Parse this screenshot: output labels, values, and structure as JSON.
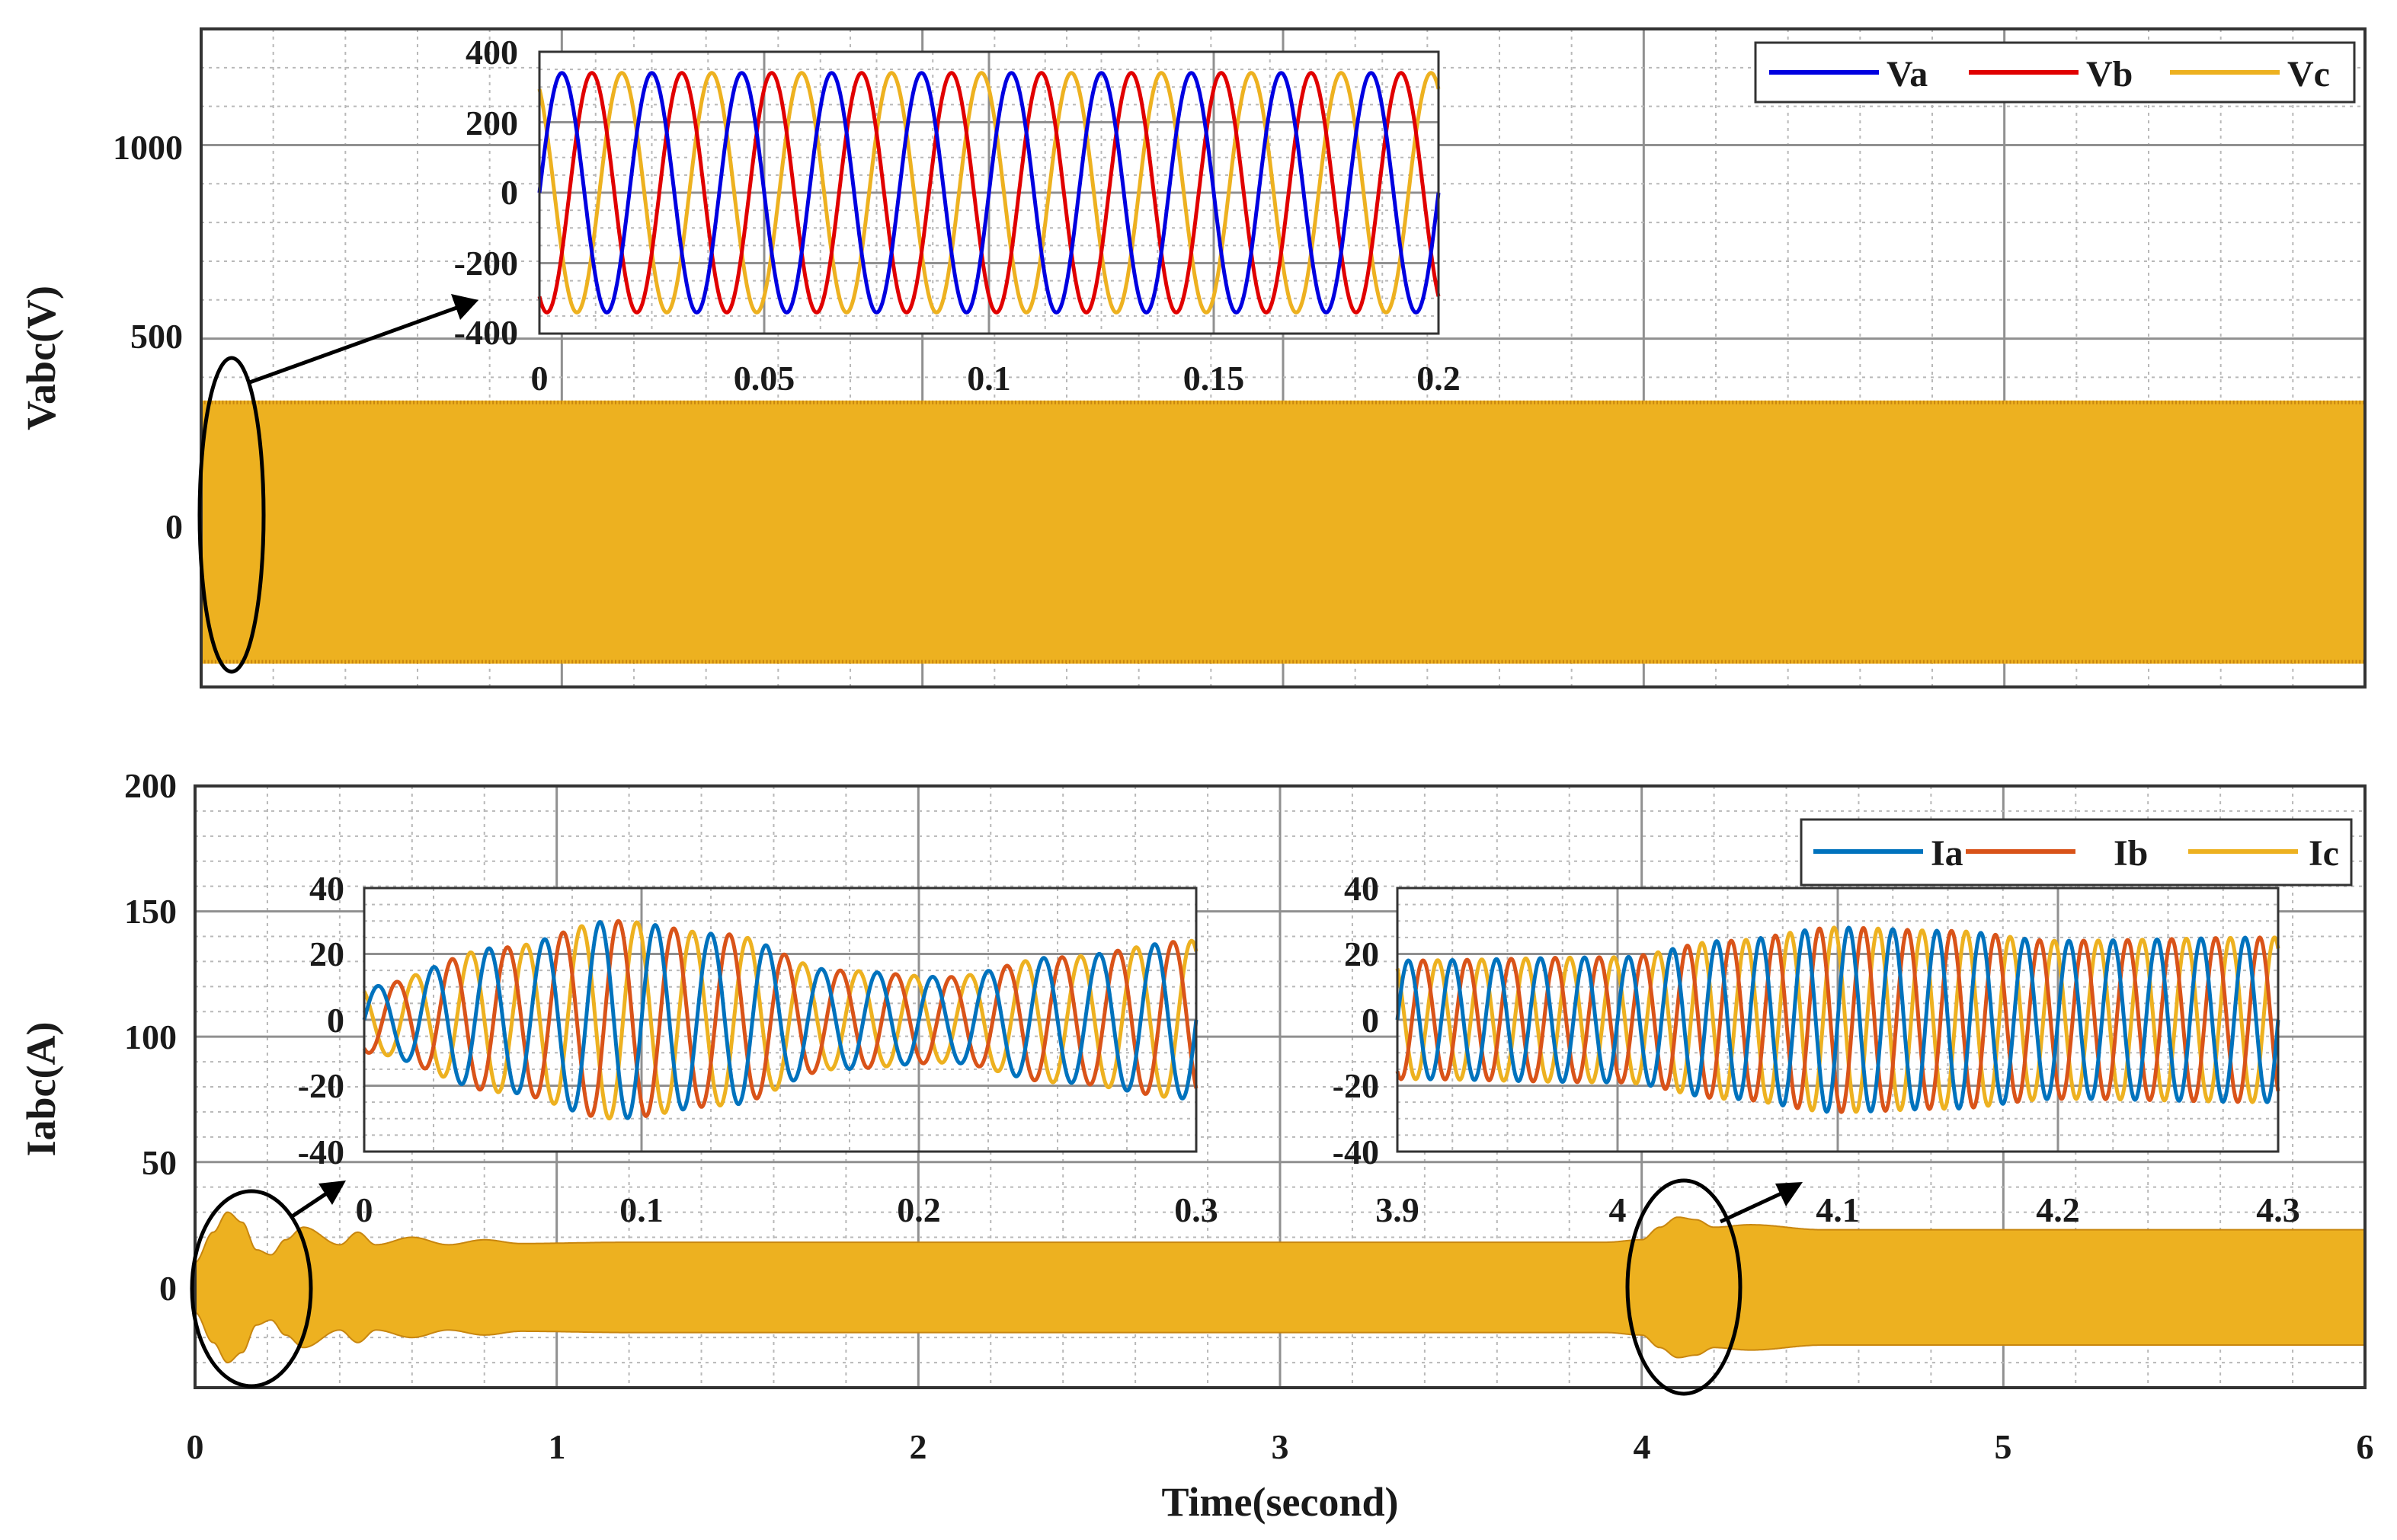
{
  "colors": {
    "Va": "#0000e0",
    "Vb": "#e00000",
    "Vc": "#edb120",
    "Ia": "#0072bd",
    "Ib": "#d95319",
    "Ic": "#edb120",
    "grid_major": "#909090",
    "grid_minor": "#b8b8b8",
    "axis": "#333333"
  },
  "chart_data": [
    {
      "id": "voltage",
      "type": "line",
      "ylabel": "Vabc(V)",
      "xlim": [
        0,
        6
      ],
      "ylim": [
        -400,
        1300
      ],
      "yticks": [
        0,
        500,
        1000
      ],
      "xticks": [
        0,
        1,
        2,
        3,
        4,
        5,
        6
      ],
      "grid": true,
      "frequency_hz": 50,
      "series": [
        {
          "name": "Va",
          "amplitude": 340,
          "phase_deg": 0
        },
        {
          "name": "Vb",
          "amplitude": 340,
          "phase_deg": -120
        },
        {
          "name": "Vc",
          "amplitude": 340,
          "phase_deg": 120
        }
      ],
      "legend": {
        "entries": [
          "Va",
          "Vb",
          "Vc"
        ],
        "position": "top-right"
      },
      "inset": {
        "xlim": [
          0,
          0.2
        ],
        "ylim": [
          -400,
          400
        ],
        "xticks": [
          0,
          0.05,
          0.1,
          0.15,
          0.2
        ],
        "xtick_labels": [
          "0",
          "0.05",
          "0.1",
          "0.15",
          "0.2"
        ],
        "yticks": [
          400,
          200,
          0,
          -200,
          -400
        ],
        "ytick_labels": [
          "400",
          "200",
          "0",
          "-200",
          "-400"
        ],
        "zoom_window": [
          0,
          0.2
        ]
      }
    },
    {
      "id": "current",
      "type": "line",
      "ylabel": "Iabc(A)",
      "xlabel": "Time(second)",
      "xlim": [
        0,
        6
      ],
      "ylim": [
        -40,
        200
      ],
      "yticks": [
        0,
        50,
        100,
        150,
        200
      ],
      "xticks": [
        0,
        1,
        2,
        3,
        4,
        5,
        6
      ],
      "grid": true,
      "frequency_hz": 50,
      "series": [
        {
          "name": "Ia",
          "phase_deg": 0
        },
        {
          "name": "Ib",
          "phase_deg": -120
        },
        {
          "name": "Ic",
          "phase_deg": 120
        }
      ],
      "envelope": {
        "t": [
          0,
          0.05,
          0.09,
          0.13,
          0.17,
          0.21,
          0.25,
          0.3,
          0.4,
          0.45,
          0.5,
          0.6,
          0.7,
          0.8,
          0.9,
          1.2,
          2.0,
          3.0,
          3.9,
          4.0,
          4.05,
          4.1,
          4.15,
          4.2,
          4.3,
          4.5,
          5.0,
          6.0
        ],
        "amp": [
          10,
          22,
          30,
          26,
          15,
          13,
          19,
          24,
          17,
          22,
          17,
          20,
          17,
          19,
          17.5,
          18,
          18,
          18,
          18,
          19,
          24,
          28,
          27,
          24,
          25,
          23,
          23,
          23
        ]
      },
      "legend": {
        "entries": [
          "Ia",
          "Ib",
          "Ic"
        ],
        "position": "top-right"
      },
      "insets": [
        {
          "xlim": [
            0,
            0.3
          ],
          "ylim": [
            -40,
            40
          ],
          "xticks": [
            0,
            0.1,
            0.2,
            0.3
          ],
          "xtick_labels": [
            "0",
            "0.1",
            "0.2",
            "0.3"
          ],
          "yticks": [
            40,
            20,
            0,
            -20,
            -40
          ],
          "ytick_labels": [
            "40",
            "20",
            "0",
            "-20",
            "-40"
          ],
          "zoom_window": [
            0,
            0.3
          ]
        },
        {
          "xlim": [
            3.9,
            4.3
          ],
          "ylim": [
            -40,
            40
          ],
          "xticks": [
            3.9,
            4.0,
            4.1,
            4.2,
            4.3
          ],
          "xtick_labels": [
            "3.9",
            "4",
            "4.1",
            "4.2",
            "4.3"
          ],
          "yticks": [
            40,
            20,
            0,
            -20,
            -40
          ],
          "ytick_labels": [
            "40",
            "20",
            "0",
            "-20",
            "-40"
          ],
          "zoom_window": [
            3.9,
            4.3
          ]
        }
      ]
    }
  ],
  "text": {
    "v_ylabel": "Vabc(V)",
    "i_ylabel": "Iabc(A)",
    "xlabel": "Time(second)",
    "v_yticks": [
      "0",
      "500",
      "1000"
    ],
    "i_yticks": [
      "0",
      "50",
      "100",
      "150",
      "200"
    ],
    "xticks": [
      "0",
      "1",
      "2",
      "3",
      "4",
      "5",
      "6"
    ],
    "v_legend": [
      "Va",
      "Vb",
      "Vc"
    ],
    "i_legend": [
      "Ia",
      "Ib",
      "Ic"
    ]
  }
}
